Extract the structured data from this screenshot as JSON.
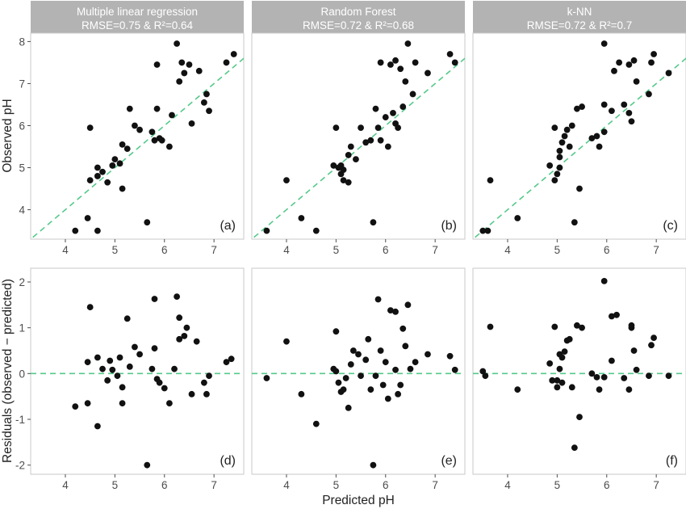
{
  "figure": {
    "xlabel": "Predicted pH",
    "ylabel_top": "Observed pH",
    "ylabel_bottom": "Residuals (observed − predicted)"
  },
  "models": [
    {
      "name": "Multiple linear regression",
      "metrics": "RMSE=0.75 & R²=0.64"
    },
    {
      "name": "Random Forest",
      "metrics": "RMSE=0.72 & R²=0.68"
    },
    {
      "name": "k-NN",
      "metrics": "RMSE=0.72 & R²=0.7"
    }
  ],
  "chart_data": [
    {
      "type": "scatter",
      "panel_label": "(a)",
      "xlim": [
        3.3,
        7.6
      ],
      "ylim": [
        3.3,
        8.2
      ],
      "xticks": [
        4,
        5,
        6,
        7
      ],
      "yticks": [
        4,
        5,
        6,
        7,
        8
      ],
      "reference_line": "y = x",
      "points": [
        [
          4.2,
          3.5
        ],
        [
          4.45,
          3.8
        ],
        [
          4.65,
          3.5
        ],
        [
          4.5,
          4.7
        ],
        [
          4.75,
          4.9
        ],
        [
          4.85,
          4.65
        ],
        [
          4.95,
          5.05
        ],
        [
          5.1,
          5.1
        ],
        [
          5.15,
          4.5
        ],
        [
          4.65,
          5.0
        ],
        [
          5.0,
          5.2
        ],
        [
          5.15,
          5.55
        ],
        [
          5.25,
          5.45
        ],
        [
          5.4,
          6.0
        ],
        [
          5.5,
          5.9
        ],
        [
          5.65,
          3.7
        ],
        [
          5.75,
          5.85
        ],
        [
          5.8,
          5.65
        ],
        [
          5.9,
          5.7
        ],
        [
          5.95,
          5.65
        ],
        [
          6.1,
          5.5
        ],
        [
          6.15,
          6.25
        ],
        [
          6.3,
          7.05
        ],
        [
          6.25,
          7.95
        ],
        [
          6.35,
          7.5
        ],
        [
          6.4,
          7.25
        ],
        [
          6.5,
          7.45
        ],
        [
          6.55,
          6.05
        ],
        [
          6.7,
          7.3
        ],
        [
          6.8,
          6.55
        ],
        [
          6.85,
          6.75
        ],
        [
          6.9,
          6.35
        ],
        [
          7.25,
          7.5
        ],
        [
          7.4,
          7.7
        ],
        [
          4.5,
          5.95
        ],
        [
          4.65,
          4.8
        ],
        [
          5.3,
          6.4
        ],
        [
          5.85,
          6.4
        ],
        [
          5.85,
          7.45
        ]
      ]
    },
    {
      "type": "scatter",
      "panel_label": "(b)",
      "xlim": [
        3.3,
        7.6
      ],
      "ylim": [
        3.3,
        8.2
      ],
      "xticks": [
        4,
        5,
        6,
        7
      ],
      "yticks": [
        4,
        5,
        6,
        7,
        8
      ],
      "reference_line": "y = x",
      "points": [
        [
          3.6,
          3.5
        ],
        [
          4.0,
          4.7
        ],
        [
          4.3,
          3.8
        ],
        [
          4.6,
          3.5
        ],
        [
          4.95,
          5.05
        ],
        [
          5.05,
          5.0
        ],
        [
          5.1,
          4.85
        ],
        [
          5.15,
          4.7
        ],
        [
          5.25,
          4.65
        ],
        [
          5.25,
          5.3
        ],
        [
          5.3,
          5.5
        ],
        [
          5.5,
          5.95
        ],
        [
          5.6,
          5.6
        ],
        [
          5.7,
          5.65
        ],
        [
          5.75,
          3.7
        ],
        [
          5.85,
          5.95
        ],
        [
          5.9,
          5.65
        ],
        [
          6.05,
          5.5
        ],
        [
          6.15,
          6.3
        ],
        [
          6.2,
          6.05
        ],
        [
          6.25,
          5.95
        ],
        [
          6.3,
          7.35
        ],
        [
          6.35,
          6.45
        ],
        [
          6.4,
          7.05
        ],
        [
          6.45,
          7.95
        ],
        [
          6.55,
          6.75
        ],
        [
          6.6,
          7.5
        ],
        [
          6.85,
          7.25
        ],
        [
          7.3,
          7.7
        ],
        [
          7.4,
          7.5
        ],
        [
          5.0,
          5.95
        ],
        [
          5.15,
          4.95
        ],
        [
          5.8,
          6.4
        ],
        [
          5.9,
          7.5
        ],
        [
          6.1,
          7.45
        ],
        [
          6.2,
          7.55
        ],
        [
          5.1,
          5.05
        ],
        [
          5.4,
          5.2
        ],
        [
          6.0,
          6.2
        ]
      ]
    },
    {
      "type": "scatter",
      "panel_label": "(c)",
      "xlim": [
        3.3,
        7.6
      ],
      "ylim": [
        3.3,
        8.2
      ],
      "xticks": [
        4,
        5,
        6,
        7
      ],
      "yticks": [
        4,
        5,
        6,
        7,
        8
      ],
      "reference_line": "y = x",
      "points": [
        [
          3.5,
          3.5
        ],
        [
          3.6,
          3.5
        ],
        [
          3.65,
          4.7
        ],
        [
          4.2,
          3.8
        ],
        [
          4.85,
          5.05
        ],
        [
          4.95,
          4.7
        ],
        [
          5.0,
          4.85
        ],
        [
          5.05,
          5.25
        ],
        [
          5.05,
          5.0
        ],
        [
          5.1,
          5.6
        ],
        [
          5.15,
          5.75
        ],
        [
          5.2,
          5.9
        ],
        [
          5.3,
          6.0
        ],
        [
          5.35,
          3.7
        ],
        [
          5.4,
          6.4
        ],
        [
          5.45,
          4.5
        ],
        [
          5.5,
          6.45
        ],
        [
          5.7,
          5.7
        ],
        [
          5.8,
          5.75
        ],
        [
          5.85,
          5.5
        ],
        [
          5.95,
          5.85
        ],
        [
          5.95,
          7.95
        ],
        [
          6.1,
          6.35
        ],
        [
          6.15,
          7.3
        ],
        [
          6.25,
          7.5
        ],
        [
          6.35,
          6.5
        ],
        [
          6.45,
          7.45
        ],
        [
          6.5,
          6.1
        ],
        [
          6.55,
          7.55
        ],
        [
          6.6,
          7.05
        ],
        [
          6.85,
          6.75
        ],
        [
          6.9,
          7.5
        ],
        [
          6.95,
          7.7
        ],
        [
          7.25,
          7.25
        ],
        [
          4.95,
          5.95
        ],
        [
          5.05,
          5.4
        ],
        [
          5.95,
          6.5
        ],
        [
          6.45,
          6.3
        ],
        [
          5.25,
          5.5
        ]
      ]
    },
    {
      "type": "scatter",
      "panel_label": "(d)",
      "xlim": [
        3.3,
        7.6
      ],
      "ylim": [
        -2.2,
        2.3
      ],
      "xticks": [
        4,
        5,
        6,
        7
      ],
      "yticks": [
        -2,
        -1,
        0,
        1,
        2
      ],
      "reference_line": "y = 0",
      "points": [
        [
          4.2,
          -0.72
        ],
        [
          4.45,
          -0.65
        ],
        [
          4.45,
          0.25
        ],
        [
          4.5,
          1.45
        ],
        [
          4.65,
          -1.15
        ],
        [
          4.65,
          0.35
        ],
        [
          4.75,
          0.1
        ],
        [
          4.85,
          -0.15
        ],
        [
          4.9,
          0.28
        ],
        [
          4.95,
          0.08
        ],
        [
          5.05,
          -0.05
        ],
        [
          5.1,
          0.35
        ],
        [
          5.15,
          -0.65
        ],
        [
          5.15,
          -0.3
        ],
        [
          5.25,
          1.2
        ],
        [
          5.3,
          0.15
        ],
        [
          5.4,
          0.58
        ],
        [
          5.5,
          0.42
        ],
        [
          5.65,
          -2.0
        ],
        [
          5.75,
          0.1
        ],
        [
          5.8,
          0.55
        ],
        [
          5.8,
          1.63
        ],
        [
          5.85,
          -0.12
        ],
        [
          5.9,
          -0.2
        ],
        [
          6.0,
          -0.32
        ],
        [
          6.1,
          -0.65
        ],
        [
          6.2,
          0.1
        ],
        [
          6.25,
          1.68
        ],
        [
          6.3,
          1.22
        ],
        [
          6.3,
          0.75
        ],
        [
          6.4,
          0.82
        ],
        [
          6.45,
          1.0
        ],
        [
          6.55,
          -0.45
        ],
        [
          6.65,
          0.7
        ],
        [
          6.8,
          -0.2
        ],
        [
          6.85,
          -0.45
        ],
        [
          6.9,
          -0.05
        ],
        [
          7.25,
          0.25
        ],
        [
          7.35,
          0.32
        ]
      ]
    },
    {
      "type": "scatter",
      "panel_label": "(e)",
      "xlim": [
        3.3,
        7.6
      ],
      "ylim": [
        -2.2,
        2.3
      ],
      "xticks": [
        4,
        5,
        6,
        7
      ],
      "yticks": [
        -2,
        -1,
        0,
        1,
        2
      ],
      "reference_line": "y = 0",
      "points": [
        [
          3.6,
          -0.1
        ],
        [
          4.0,
          0.7
        ],
        [
          4.3,
          -0.45
        ],
        [
          4.6,
          -1.1
        ],
        [
          4.95,
          0.1
        ],
        [
          5.0,
          0.05
        ],
        [
          5.0,
          0.92
        ],
        [
          5.05,
          -0.2
        ],
        [
          5.1,
          -0.4
        ],
        [
          5.15,
          -0.35
        ],
        [
          5.2,
          -0.1
        ],
        [
          5.25,
          -0.75
        ],
        [
          5.3,
          0.2
        ],
        [
          5.35,
          0.5
        ],
        [
          5.45,
          0.42
        ],
        [
          5.5,
          -0.05
        ],
        [
          5.6,
          0.3
        ],
        [
          5.65,
          0.75
        ],
        [
          5.7,
          -0.35
        ],
        [
          5.75,
          -2.0
        ],
        [
          5.8,
          -0.05
        ],
        [
          5.85,
          1.62
        ],
        [
          5.9,
          0.5
        ],
        [
          5.95,
          -0.25
        ],
        [
          6.0,
          0.25
        ],
        [
          6.05,
          -0.55
        ],
        [
          6.1,
          1.38
        ],
        [
          6.2,
          1.35
        ],
        [
          6.2,
          0.08
        ],
        [
          6.25,
          -0.45
        ],
        [
          6.3,
          -0.25
        ],
        [
          6.35,
          0.98
        ],
        [
          6.4,
          0.6
        ],
        [
          6.45,
          1.5
        ],
        [
          6.5,
          0.1
        ],
        [
          6.6,
          0.25
        ],
        [
          6.85,
          0.42
        ],
        [
          7.3,
          0.38
        ],
        [
          7.4,
          0.08
        ]
      ]
    },
    {
      "type": "scatter",
      "panel_label": "(f)",
      "xlim": [
        3.3,
        7.6
      ],
      "ylim": [
        -2.2,
        2.3
      ],
      "xticks": [
        4,
        5,
        6,
        7
      ],
      "yticks": [
        -2,
        -1,
        0,
        1,
        2
      ],
      "reference_line": "y = 0",
      "points": [
        [
          3.5,
          0.05
        ],
        [
          3.55,
          -0.05
        ],
        [
          3.65,
          1.02
        ],
        [
          4.2,
          -0.35
        ],
        [
          4.85,
          0.22
        ],
        [
          4.9,
          -0.15
        ],
        [
          4.95,
          1.02
        ],
        [
          5.0,
          -0.3
        ],
        [
          5.0,
          -0.15
        ],
        [
          5.05,
          0.42
        ],
        [
          5.05,
          0.1
        ],
        [
          5.1,
          -0.2
        ],
        [
          5.1,
          0.35
        ],
        [
          5.15,
          0.48
        ],
        [
          5.2,
          0.72
        ],
        [
          5.25,
          0.75
        ],
        [
          5.3,
          -0.3
        ],
        [
          5.35,
          -1.62
        ],
        [
          5.4,
          1.05
        ],
        [
          5.45,
          -0.95
        ],
        [
          5.5,
          1.0
        ],
        [
          5.7,
          0.0
        ],
        [
          5.8,
          -0.08
        ],
        [
          5.85,
          -0.35
        ],
        [
          5.95,
          2.02
        ],
        [
          5.95,
          -0.08
        ],
        [
          6.1,
          1.25
        ],
        [
          6.1,
          0.28
        ],
        [
          6.2,
          1.28
        ],
        [
          6.35,
          -0.1
        ],
        [
          6.45,
          -0.35
        ],
        [
          6.5,
          1.0
        ],
        [
          6.5,
          1.05
        ],
        [
          6.55,
          0.5
        ],
        [
          6.6,
          0.08
        ],
        [
          6.85,
          -0.05
        ],
        [
          6.9,
          0.62
        ],
        [
          6.95,
          0.78
        ],
        [
          7.25,
          -0.05
        ]
      ]
    }
  ]
}
